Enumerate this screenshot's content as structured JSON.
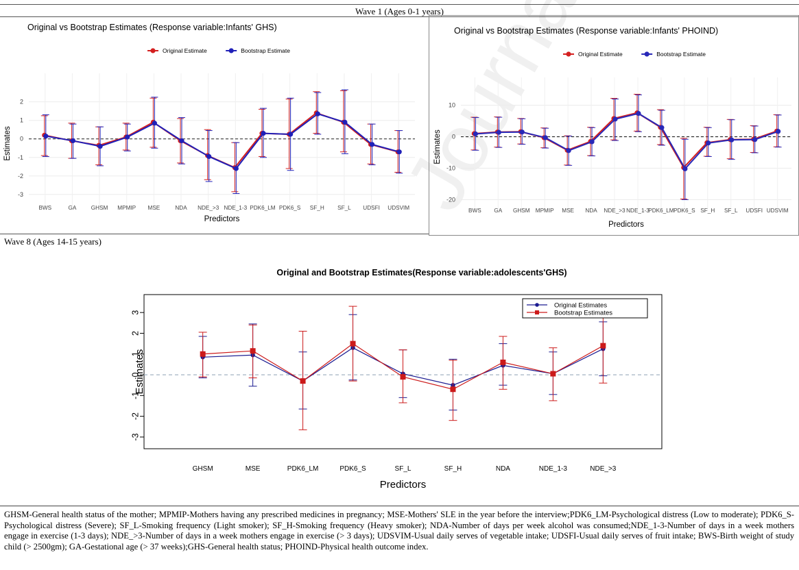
{
  "wave1_label": "Wave 1 (Ages 0-1 years)",
  "wave8_label": "Wave 8 (Ages 14-15 years)",
  "watermark": "Journal Pre",
  "footnote": "GHSM-General health status of the mother; MPMIP-Mothers having any prescribed medicines in pregnancy; MSE-Mothers' SLE in the year before the interview;PDK6_LM-Psychological distress (Low to moderate); PDK6_S-Psychological distress (Severe); SF_L-Smoking frequency (Light smoker); SF_H-Smoking frequency (Heavy smoker); NDA-Number of days per week alcohol was consumed;NDE_1-3-Number of days in a week mothers engage in exercise (1-3 days); NDE_>3-Number of days in a week mothers engage in exercise (> 3 days); UDSVIM-Usual daily serves of vegetable intake; UDSFI-Usual daily serves of fruit intake; BWS-Birth weight of study child (> 2500gm); GA-Gestational age (> 37 weeks);GHS-General health status; PHOIND-Physical health outcome index.",
  "chart_data": [
    {
      "type": "line",
      "title": "Original vs Bootstrap Estimates (Response variable:Infants' GHS)",
      "xlabel": "Predictors",
      "ylabel": "Estimates",
      "categories": [
        "BWS",
        "GA",
        "GHSM",
        "MPMIP",
        "MSE",
        "NDA",
        "NDE_>3",
        "NDE_1-3",
        "PDK6_LM",
        "PDK6_S",
        "SF_H",
        "SF_L",
        "UDSFI",
        "UDSVIM"
      ],
      "ylim": [
        -3.3,
        2.8
      ],
      "yticks": [
        -3,
        -2,
        -1,
        0,
        1,
        2
      ],
      "legend": "top",
      "series": [
        {
          "name": "Original Estimate",
          "color": "#d42020",
          "values": [
            0.2,
            -0.1,
            -0.35,
            0.1,
            0.9,
            -0.1,
            -0.9,
            -1.55,
            0.3,
            0.25,
            1.4,
            0.9,
            -0.3,
            -0.7
          ],
          "lower": [
            -0.9,
            -1.05,
            -1.4,
            -0.6,
            -0.45,
            -1.3,
            -2.2,
            -2.85,
            -0.95,
            -1.6,
            0.3,
            -0.7,
            -1.35,
            -1.8
          ],
          "upper": [
            1.25,
            0.85,
            0.65,
            0.85,
            2.2,
            1.1,
            0.5,
            -0.2,
            1.6,
            2.15,
            2.55,
            2.6,
            0.8,
            0.45
          ]
        },
        {
          "name": "Bootstrap Estimate",
          "color": "#2020b8",
          "values": [
            0.15,
            -0.1,
            -0.4,
            0.1,
            0.85,
            -0.1,
            -0.95,
            -1.6,
            0.3,
            0.25,
            1.35,
            0.9,
            -0.3,
            -0.7
          ],
          "lower": [
            -0.95,
            -1.05,
            -1.45,
            -0.65,
            -0.5,
            -1.35,
            -2.3,
            -2.95,
            -1.0,
            -1.7,
            0.25,
            -0.8,
            -1.4,
            -1.85
          ],
          "upper": [
            1.3,
            0.8,
            0.65,
            0.8,
            2.25,
            1.15,
            0.45,
            -0.2,
            1.65,
            2.2,
            2.5,
            2.65,
            0.8,
            0.45
          ]
        }
      ]
    },
    {
      "type": "line",
      "title": "Original vs Bootstrap Estimates (Response variable:Infants' PHOIND)",
      "xlabel": "Predictors",
      "ylabel": "Estimates",
      "categories": [
        "BWS",
        "GA",
        "GHSM",
        "MPMIP",
        "MSE",
        "NDA",
        "NDE_>3",
        "NDE_1-3",
        "PDK6_LM",
        "PDK6_S",
        "SF_H",
        "SF_L",
        "UDSFI",
        "UDSVIM"
      ],
      "ylim": [
        -21,
        14.5
      ],
      "yticks": [
        -20,
        -10,
        0,
        10
      ],
      "legend": "top",
      "series": [
        {
          "name": "Original Estimate",
          "color": "#d42020",
          "values": [
            1.0,
            1.5,
            1.6,
            -0.3,
            -4.3,
            -1.5,
            5.8,
            7.6,
            3.0,
            -9.8,
            -1.9,
            -0.9,
            -0.8,
            1.8
          ],
          "lower": [
            -4.2,
            -3.3,
            -2.3,
            -3.5,
            -9.0,
            -6.0,
            -1.0,
            1.8,
            -2.5,
            -19.8,
            -6.2,
            -7.0,
            -5.0,
            -3.2
          ],
          "upper": [
            6.2,
            6.3,
            5.8,
            2.8,
            0.3,
            3.0,
            12.2,
            13.5,
            8.6,
            -0.5,
            3.0,
            5.5,
            3.5,
            7.0
          ]
        },
        {
          "name": "Bootstrap Estimate",
          "color": "#2828b8",
          "values": [
            0.9,
            1.4,
            1.5,
            -0.3,
            -4.4,
            -1.6,
            5.6,
            7.4,
            2.9,
            -10.2,
            -2.0,
            -1.0,
            -0.9,
            1.7
          ],
          "lower": [
            -4.3,
            -3.4,
            -2.4,
            -3.6,
            -9.1,
            -6.1,
            -1.2,
            1.6,
            -2.7,
            -20.0,
            -6.3,
            -7.2,
            -5.1,
            -3.3
          ],
          "upper": [
            6.1,
            6.2,
            5.7,
            2.7,
            0.2,
            2.9,
            12.0,
            13.3,
            8.4,
            -0.8,
            2.9,
            5.4,
            3.4,
            6.9
          ]
        }
      ]
    },
    {
      "type": "line",
      "title": "Original and Bootstrap Estimates(Response variable:adolescents'GHS)",
      "xlabel": "Predictors",
      "ylabel": "Estimates",
      "categories": [
        "GHSM",
        "MSE",
        "PDK6_LM",
        "PDK6_S",
        "SF_L",
        "SF_H",
        "NDA",
        "NDE_1-3",
        "NDE_>3"
      ],
      "ylim": [
        -3.3,
        3.6
      ],
      "yticks": [
        -3,
        -2,
        -1,
        0,
        1,
        2,
        3
      ],
      "legend": "top-right",
      "series": [
        {
          "name": "Original Estimates",
          "color": "#1a1a90",
          "values": [
            0.85,
            0.95,
            -0.3,
            1.3,
            0.05,
            -0.5,
            0.45,
            0.05,
            1.25
          ],
          "lower": [
            -0.15,
            -0.55,
            -1.65,
            -0.25,
            -1.1,
            -1.7,
            -0.5,
            -0.95,
            -0.05
          ],
          "upper": [
            1.85,
            2.45,
            1.1,
            2.9,
            1.2,
            0.75,
            1.5,
            1.1,
            2.55
          ]
        },
        {
          "name": "Bootstrap Estimates",
          "color": "#cc1a1a",
          "values": [
            1.0,
            1.15,
            -0.3,
            1.5,
            -0.1,
            -0.7,
            0.6,
            0.05,
            1.4
          ],
          "lower": [
            -0.1,
            -0.15,
            -2.65,
            -0.3,
            -1.35,
            -2.2,
            -0.7,
            -1.25,
            -0.4
          ],
          "upper": [
            2.05,
            2.4,
            2.1,
            3.3,
            1.2,
            0.7,
            1.85,
            1.3,
            2.95
          ]
        }
      ]
    }
  ]
}
